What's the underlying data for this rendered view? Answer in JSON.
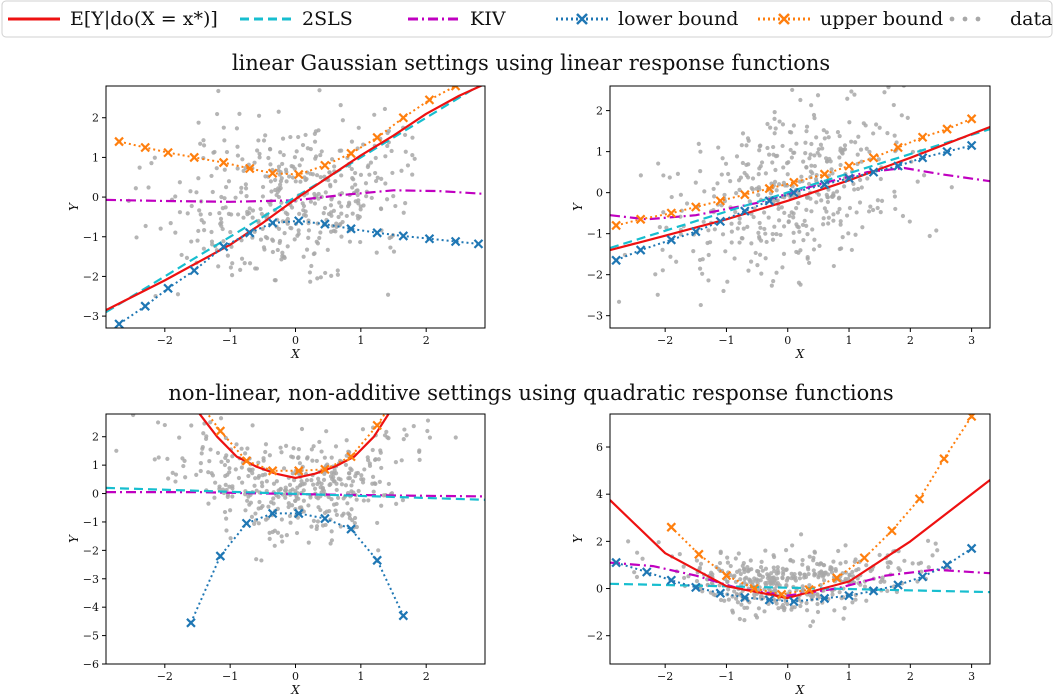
{
  "colors": {
    "truth": "#ee1111",
    "tsls": "#17becf",
    "kiv": "#c000c0",
    "lower": "#1f77b4",
    "upper": "#ff7f0e",
    "data": "#a8a8a8"
  },
  "legend": {
    "items": [
      {
        "key": "truth",
        "label": "E[Y|do(X = x*)]",
        "style": "solid"
      },
      {
        "key": "tsls",
        "label": "2SLS",
        "style": "dashed"
      },
      {
        "key": "kiv",
        "label": "KIV",
        "style": "dashdot"
      },
      {
        "key": "lower",
        "label": "lower bound",
        "style": "dotted-x"
      },
      {
        "key": "upper",
        "label": "upper bound",
        "style": "dotted-x"
      },
      {
        "key": "data",
        "label": "data",
        "style": "points"
      }
    ]
  },
  "section_titles": [
    "linear Gaussian settings using linear response functions",
    "non-linear, non-additive settings using quadratic response functions"
  ],
  "chart_data": [
    {
      "type": "line",
      "xlabel": "X",
      "ylabel": "Y",
      "xlim": [
        -2.9,
        2.9
      ],
      "ylim": [
        -3.3,
        2.8
      ],
      "xticks": [
        -2,
        -1,
        0,
        1,
        2
      ],
      "yticks": [
        -3,
        -2,
        -1,
        0,
        1,
        2
      ],
      "series": [
        {
          "key": "truth",
          "x": [
            -2.9,
            -2.0,
            -1.0,
            -0.5,
            0.0,
            0.5,
            1.0,
            1.5,
            2.0,
            2.5,
            2.9
          ],
          "y": [
            -2.85,
            -2.1,
            -1.2,
            -0.65,
            -0.05,
            0.5,
            1.05,
            1.55,
            2.1,
            2.55,
            2.85
          ]
        },
        {
          "key": "tsls",
          "x": [
            -2.9,
            2.9
          ],
          "y": [
            -2.9,
            2.9
          ]
        },
        {
          "key": "kiv",
          "x": [
            -2.9,
            -2.0,
            -1.0,
            0.0,
            0.7,
            1.5,
            2.2,
            2.9
          ],
          "y": [
            -0.07,
            -0.1,
            -0.12,
            -0.08,
            0.05,
            0.17,
            0.15,
            0.08
          ]
        },
        {
          "key": "lower",
          "x": [
            -2.7,
            -2.3,
            -1.95,
            -1.55,
            -1.1,
            -0.7,
            -0.35,
            0.05,
            0.45,
            0.85,
            1.25,
            1.65,
            2.05,
            2.45,
            2.8
          ],
          "y": [
            -3.2,
            -2.75,
            -2.3,
            -1.85,
            -1.25,
            -0.9,
            -0.65,
            -0.6,
            -0.68,
            -0.8,
            -0.9,
            -0.98,
            -1.05,
            -1.12,
            -1.18
          ]
        },
        {
          "key": "upper",
          "x": [
            -2.7,
            -2.3,
            -1.95,
            -1.55,
            -1.1,
            -0.7,
            -0.35,
            0.05,
            0.45,
            0.85,
            1.25,
            1.65,
            2.05,
            2.45,
            2.8
          ],
          "y": [
            1.4,
            1.25,
            1.12,
            1.0,
            0.87,
            0.72,
            0.6,
            0.57,
            0.8,
            1.1,
            1.5,
            2.0,
            2.45,
            2.8,
            3.1
          ]
        }
      ]
    },
    {
      "type": "line",
      "xlabel": "X",
      "ylabel": "Y",
      "xlim": [
        -2.9,
        3.3
      ],
      "ylim": [
        -3.3,
        2.6
      ],
      "xticks": [
        -2,
        -1,
        0,
        1,
        2,
        3
      ],
      "yticks": [
        -3,
        -2,
        -1,
        0,
        1,
        2
      ],
      "series": [
        {
          "key": "truth",
          "x": [
            -2.9,
            -2.0,
            -1.0,
            0.0,
            1.0,
            2.0,
            3.3
          ],
          "y": [
            -1.4,
            -1.05,
            -0.65,
            -0.2,
            0.3,
            0.85,
            1.6
          ]
        },
        {
          "key": "tsls",
          "x": [
            -2.9,
            3.3
          ],
          "y": [
            -1.35,
            1.55
          ]
        },
        {
          "key": "kiv",
          "x": [
            -2.9,
            -2.3,
            -1.5,
            -0.5,
            0.5,
            1.3,
            1.9,
            2.5,
            3.3
          ],
          "y": [
            -0.55,
            -0.65,
            -0.55,
            -0.25,
            0.2,
            0.5,
            0.6,
            0.45,
            0.28
          ]
        },
        {
          "key": "lower",
          "x": [
            -2.8,
            -2.4,
            -1.9,
            -1.5,
            -1.1,
            -0.7,
            -0.3,
            0.1,
            0.6,
            1.0,
            1.4,
            1.8,
            2.2,
            2.6,
            3.0
          ],
          "y": [
            -1.65,
            -1.4,
            -1.15,
            -0.95,
            -0.7,
            -0.45,
            -0.2,
            0.0,
            0.2,
            0.35,
            0.5,
            0.65,
            0.85,
            1.0,
            1.15
          ]
        },
        {
          "key": "upper",
          "x": [
            -2.8,
            -2.4,
            -1.9,
            -1.5,
            -1.1,
            -0.7,
            -0.3,
            0.1,
            0.6,
            1.0,
            1.4,
            1.8,
            2.2,
            2.6,
            3.0
          ],
          "y": [
            -0.8,
            -0.65,
            -0.5,
            -0.35,
            -0.2,
            -0.05,
            0.1,
            0.25,
            0.45,
            0.65,
            0.85,
            1.1,
            1.35,
            1.55,
            1.8
          ]
        }
      ]
    },
    {
      "type": "line",
      "xlabel": "X",
      "ylabel": "Y",
      "xlim": [
        -2.9,
        2.9
      ],
      "ylim": [
        -6.0,
        2.8
      ],
      "xticks": [
        -2,
        -1,
        0,
        1,
        2
      ],
      "yticks": [
        -6,
        -5,
        -4,
        -3,
        -2,
        -1,
        0,
        1,
        2
      ],
      "series": [
        {
          "key": "truth",
          "x": [
            -1.5,
            -1.2,
            -0.9,
            -0.6,
            -0.3,
            0.0,
            0.3,
            0.6,
            0.9,
            1.2,
            1.45
          ],
          "y": [
            2.9,
            2.0,
            1.3,
            0.95,
            0.7,
            0.55,
            0.7,
            0.95,
            1.3,
            2.0,
            2.9
          ]
        },
        {
          "key": "tsls",
          "x": [
            -2.9,
            2.9
          ],
          "y": [
            0.2,
            -0.22
          ]
        },
        {
          "key": "kiv",
          "x": [
            -2.9,
            -1.5,
            0.0,
            1.5,
            2.9
          ],
          "y": [
            0.05,
            0.05,
            -0.02,
            -0.07,
            -0.1
          ]
        },
        {
          "key": "lower",
          "x": [
            -1.6,
            -1.15,
            -0.75,
            -0.35,
            0.05,
            0.45,
            0.85,
            1.25,
            1.65
          ],
          "y": [
            -4.55,
            -2.2,
            -1.05,
            -0.7,
            -0.7,
            -0.88,
            -1.25,
            -2.35,
            -4.3
          ]
        },
        {
          "key": "upper",
          "x": [
            -1.6,
            -1.15,
            -0.75,
            -0.35,
            0.05,
            0.45,
            0.85,
            1.25,
            1.65
          ],
          "y": [
            3.6,
            2.2,
            1.15,
            0.8,
            0.8,
            0.85,
            1.3,
            2.4,
            3.8
          ]
        }
      ]
    },
    {
      "type": "line",
      "xlabel": "X",
      "ylabel": "Y",
      "xlim": [
        -2.9,
        3.3
      ],
      "ylim": [
        -3.2,
        7.4
      ],
      "xticks": [
        -2,
        -1,
        0,
        1,
        2,
        3
      ],
      "yticks": [
        -2,
        0,
        2,
        4,
        6
      ],
      "series": [
        {
          "key": "truth",
          "x": [
            -2.9,
            -2.0,
            -1.0,
            0.0,
            1.0,
            2.0,
            3.3
          ],
          "y": [
            3.75,
            1.5,
            0.1,
            -0.4,
            0.3,
            2.0,
            4.6
          ]
        },
        {
          "key": "tsls",
          "x": [
            -2.9,
            3.3
          ],
          "y": [
            0.2,
            -0.15
          ]
        },
        {
          "key": "kiv",
          "x": [
            -2.9,
            -2.2,
            -1.5,
            -0.8,
            0.0,
            0.8,
            1.6,
            2.4,
            3.3
          ],
          "y": [
            1.1,
            0.95,
            0.55,
            0.0,
            -0.3,
            0.0,
            0.55,
            0.8,
            0.65
          ]
        },
        {
          "key": "lower",
          "x": [
            -2.8,
            -2.3,
            -1.9,
            -1.5,
            -1.1,
            -0.7,
            -0.3,
            0.1,
            0.6,
            1.0,
            1.4,
            1.8,
            2.2,
            2.6,
            3.0
          ],
          "y": [
            1.1,
            0.7,
            0.35,
            0.05,
            -0.2,
            -0.38,
            -0.48,
            -0.55,
            -0.42,
            -0.3,
            -0.1,
            0.15,
            0.5,
            1.0,
            1.7
          ]
        },
        {
          "key": "upper",
          "x": [
            -1.9,
            -1.45,
            -1.0,
            -0.55,
            -0.1,
            0.35,
            0.8,
            1.25,
            1.7,
            2.15,
            2.55,
            3.0,
            3.3
          ],
          "y": [
            2.6,
            1.45,
            0.55,
            0.0,
            -0.25,
            -0.05,
            0.45,
            1.3,
            2.45,
            3.8,
            5.5,
            7.3,
            8.5
          ]
        }
      ]
    }
  ]
}
